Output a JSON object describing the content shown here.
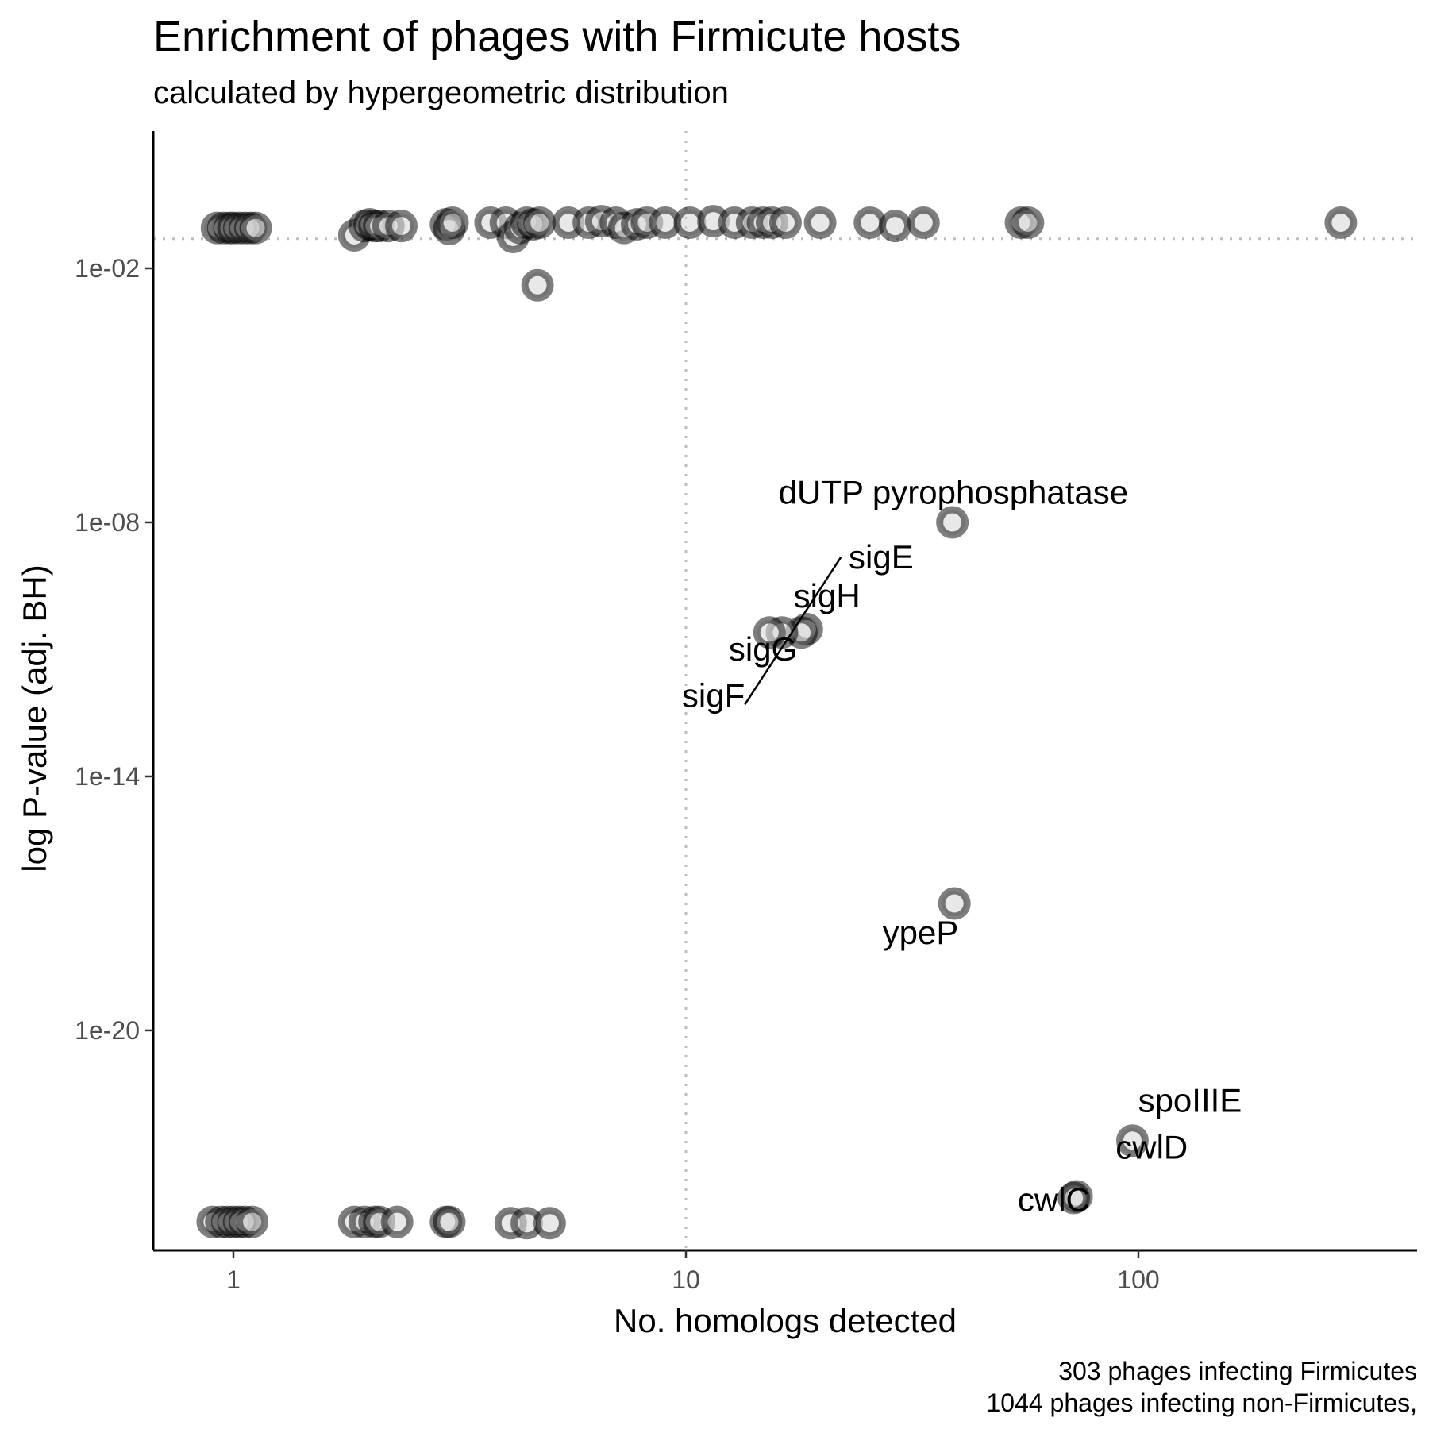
{
  "chart_data": {
    "type": "scatter",
    "title": "Enrichment of phages with Firmicute hosts",
    "subtitle": "calculated by hypergeometric distribution",
    "xlabel": "No. homologs detected",
    "ylabel": "log P-value (adj. BH)",
    "x_scale": "log10",
    "y_scale": "log10",
    "xlim": [
      0.65,
      350
    ],
    "ylim": [
      1e-25,
      0.25
    ],
    "x_ticks": [
      {
        "value": 1,
        "label": "1"
      },
      {
        "value": 10,
        "label": "10"
      },
      {
        "value": 100,
        "label": "100"
      }
    ],
    "y_ticks": [
      {
        "value": 0.01,
        "label": "1e-02"
      },
      {
        "value": 1e-08,
        "label": "1e-08"
      },
      {
        "value": 1e-14,
        "label": "1e-14"
      },
      {
        "value": 1e-20,
        "label": "1e-20"
      }
    ],
    "reference_lines": {
      "x": 10,
      "y": 0.05
    },
    "grid": false,
    "caption": [
      "303 phages infecting Firmicutes",
      "1044 phages infecting non-Firmicutes,"
    ],
    "points": [
      {
        "x": 0.92,
        "y": 0.09
      },
      {
        "x": 0.95,
        "y": 0.09
      },
      {
        "x": 0.98,
        "y": 0.09
      },
      {
        "x": 1.0,
        "y": 0.09
      },
      {
        "x": 1.03,
        "y": 0.09
      },
      {
        "x": 1.06,
        "y": 0.09
      },
      {
        "x": 1.09,
        "y": 0.09
      },
      {
        "x": 1.12,
        "y": 0.09
      },
      {
        "x": 1.85,
        "y": 0.06
      },
      {
        "x": 1.95,
        "y": 0.1
      },
      {
        "x": 2.0,
        "y": 0.11
      },
      {
        "x": 2.05,
        "y": 0.1
      },
      {
        "x": 2.1,
        "y": 0.1
      },
      {
        "x": 2.2,
        "y": 0.1
      },
      {
        "x": 2.35,
        "y": 0.1
      },
      {
        "x": 2.95,
        "y": 0.11
      },
      {
        "x": 3.0,
        "y": 0.085
      },
      {
        "x": 3.05,
        "y": 0.12
      },
      {
        "x": 3.7,
        "y": 0.12
      },
      {
        "x": 4.0,
        "y": 0.12
      },
      {
        "x": 4.15,
        "y": 0.055
      },
      {
        "x": 4.3,
        "y": 0.09
      },
      {
        "x": 4.45,
        "y": 0.12
      },
      {
        "x": 4.6,
        "y": 0.11
      },
      {
        "x": 4.75,
        "y": 0.12
      },
      {
        "x": 4.7,
        "y": 0.004
      },
      {
        "x": 5.5,
        "y": 0.12
      },
      {
        "x": 6.1,
        "y": 0.12
      },
      {
        "x": 6.5,
        "y": 0.13
      },
      {
        "x": 7.0,
        "y": 0.12
      },
      {
        "x": 7.3,
        "y": 0.09
      },
      {
        "x": 7.8,
        "y": 0.11
      },
      {
        "x": 8.2,
        "y": 0.12
      },
      {
        "x": 9.0,
        "y": 0.12
      },
      {
        "x": 10.2,
        "y": 0.12
      },
      {
        "x": 11.5,
        "y": 0.13
      },
      {
        "x": 12.8,
        "y": 0.12
      },
      {
        "x": 14.0,
        "y": 0.12
      },
      {
        "x": 14.8,
        "y": 0.12
      },
      {
        "x": 15.5,
        "y": 0.12
      },
      {
        "x": 16.6,
        "y": 0.12
      },
      {
        "x": 19.8,
        "y": 0.12
      },
      {
        "x": 25.5,
        "y": 0.12
      },
      {
        "x": 29.0,
        "y": 0.1
      },
      {
        "x": 33.5,
        "y": 0.12
      },
      {
        "x": 55.0,
        "y": 0.12
      },
      {
        "x": 57.0,
        "y": 0.12
      },
      {
        "x": 280.0,
        "y": 0.12
      },
      {
        "x": 38.8,
        "y": 1e-08,
        "label": "dUTP pyrophosphatase"
      },
      {
        "x": 18.5,
        "y": 3e-11,
        "label": "sigE"
      },
      {
        "x": 18.0,
        "y": 2.5e-11,
        "label": "sigH"
      },
      {
        "x": 16.3,
        "y": 2.5e-11,
        "label": "sigG"
      },
      {
        "x": 15.3,
        "y": 2.5e-11,
        "label": "sigF"
      },
      {
        "x": 39.2,
        "y": 1e-17,
        "label": "ypeP"
      },
      {
        "x": 97.0,
        "y": 2.5e-23,
        "label": "spoIIIE"
      },
      {
        "x": 73.0,
        "y": 1.2e-24,
        "label": "cwlD"
      },
      {
        "x": 72.0,
        "y": 1.1e-24,
        "label": "cwlC"
      },
      {
        "x": 0.9,
        "y": 3e-25
      },
      {
        "x": 0.94,
        "y": 3e-25
      },
      {
        "x": 0.97,
        "y": 3e-25
      },
      {
        "x": 1.0,
        "y": 3e-25
      },
      {
        "x": 1.03,
        "y": 3e-25
      },
      {
        "x": 1.06,
        "y": 3e-25
      },
      {
        "x": 1.1,
        "y": 3e-25
      },
      {
        "x": 1.85,
        "y": 3e-25
      },
      {
        "x": 1.95,
        "y": 3e-25
      },
      {
        "x": 2.05,
        "y": 3e-25
      },
      {
        "x": 2.1,
        "y": 3e-25
      },
      {
        "x": 2.3,
        "y": 3e-25
      },
      {
        "x": 2.95,
        "y": 3e-25
      },
      {
        "x": 3.0,
        "y": 3e-25
      },
      {
        "x": 4.1,
        "y": 2.8e-25
      },
      {
        "x": 4.45,
        "y": 2.8e-25
      },
      {
        "x": 5.0,
        "y": 2.8e-25
      }
    ],
    "labels": [
      {
        "text": "dUTP pyrophosphatase",
        "x": 39,
        "y": 5e-08
      },
      {
        "text": "sigE",
        "x": 27,
        "y": 1.5e-09,
        "segment_from": [
          22,
          1.5e-09
        ],
        "segment_to": [
          13.5,
          5e-13
        ]
      },
      {
        "text": "sigH",
        "x": 20.5,
        "y": 1.8e-10
      },
      {
        "text": "sigG",
        "x": 14.8,
        "y": 1e-11
      },
      {
        "text": "sigF",
        "x": 11.5,
        "y": 8e-13
      },
      {
        "text": "ypeP",
        "x": 33,
        "y": 2e-18
      },
      {
        "text": "spoIIIE",
        "x": 130,
        "y": 2.2e-22
      },
      {
        "text": "cwlD",
        "x": 107,
        "y": 1.7e-23
      },
      {
        "text": "cwlC",
        "x": 65,
        "y": 1e-24
      }
    ]
  }
}
